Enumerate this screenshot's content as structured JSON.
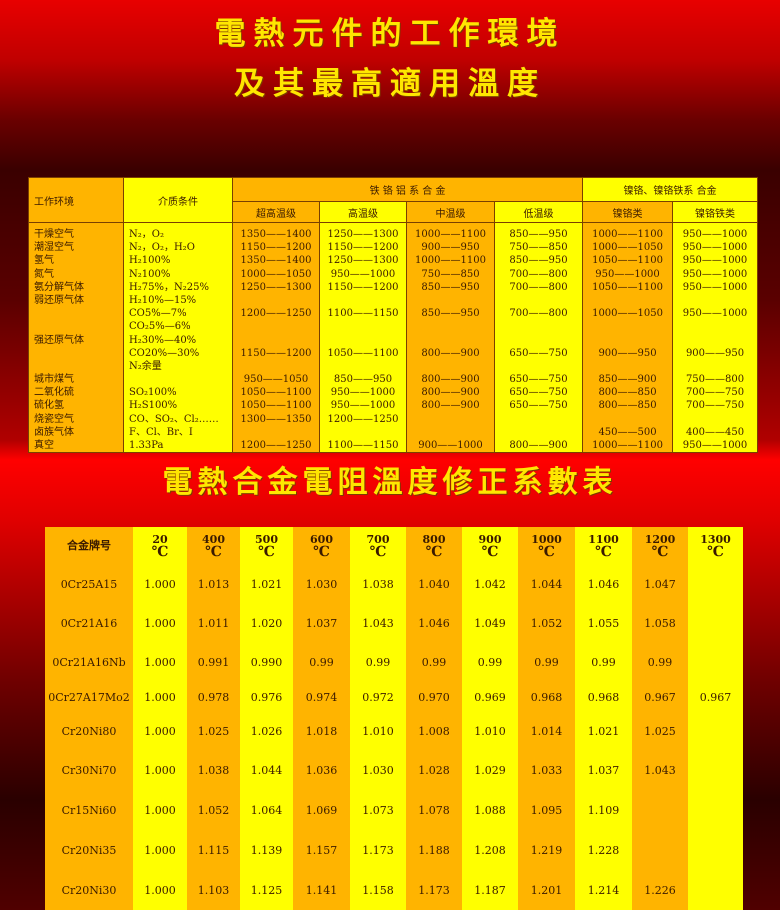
{
  "titles": {
    "line1": "電熱元件的工作環境",
    "line2": "及其最高適用溫度",
    "line3": "電熱合金電阻溫度修正系數表"
  },
  "colors": {
    "background": "#cc0000",
    "title": "#ffe600",
    "cell_orange": "#ffb400",
    "cell_yellow": "#ffff00"
  },
  "env_table": {
    "headers": {
      "environment": "工作环境",
      "medium": "介质条件",
      "fecral_group": "铁 铬 铝 系 合 金",
      "nicr_group": "镍铬、镍铬铁系 合金",
      "sub": [
        "超高温级",
        "高温级",
        "中温级",
        "低温级",
        "镍铬类",
        "镍铬铁类"
      ]
    },
    "environments": [
      "干燥空气",
      "潮湿空气",
      "氢气",
      "氮气",
      "氨分解气体",
      "弱还原气体",
      "",
      "",
      "强还原气体",
      "",
      "",
      "城市煤气",
      "二氧化硫",
      "硫化氢",
      "烧瓷空气",
      "卤族气体",
      "真空"
    ],
    "media": [
      "N₂，O₂",
      "N₂，O₂，H₂O",
      "H₂100%",
      "N₂100%",
      "H₂75%，N₂25%",
      "H₂10%—15%",
      "CO5%—7%",
      "CO₂5%—6%",
      "H₂30%—40%",
      "CO20%—30%",
      "N₂余量",
      "",
      "SO₂100%",
      "H₂S100%",
      "CO、SO₂、Cl₂……",
      "F、Cl、Br、I",
      "1.33Pa"
    ],
    "columns": [
      [
        "1350——1400",
        "1150——1200",
        "1350——1400",
        "1000——1050",
        "1250——1300",
        "",
        "1200——1250",
        "",
        "",
        "1150——1200",
        "",
        "950——1050",
        "1050——1100",
        "1050——1100",
        "1300——1350",
        "",
        "1200——1250"
      ],
      [
        "1250——1300",
        "1150——1200",
        "1250——1300",
        "950——1000",
        "1150——1200",
        "",
        "1100——1150",
        "",
        "",
        "1050——1100",
        "",
        "850——950",
        "950——1000",
        "950——1000",
        "1200——1250",
        "",
        "1100——1150"
      ],
      [
        "1000——1100",
        "900——950",
        "1000——1100",
        "750——850",
        "850——950",
        "",
        "850——950",
        "",
        "",
        "800——900",
        "",
        "800——900",
        "800——900",
        "800——900",
        "",
        "",
        "900——1000"
      ],
      [
        "850——950",
        "750——850",
        "850——950",
        "700——800",
        "700——800",
        "",
        "700——800",
        "",
        "",
        "650——750",
        "",
        "650——750",
        "650——750",
        "650——750",
        "",
        "",
        "800——900"
      ],
      [
        "1000——1100",
        "1000——1050",
        "1050——1100",
        "950——1000",
        "1050——1100",
        "",
        "1000——1050",
        "",
        "",
        "900——950",
        "",
        "850——900",
        "800——850",
        "800——850",
        "",
        "450——500",
        "1000——1100"
      ],
      [
        "950——1000",
        "950——1000",
        "950——1000",
        "950——1000",
        "950——1000",
        "",
        "950——1000",
        "",
        "",
        "900——950",
        "",
        "750——800",
        "700——750",
        "700——750",
        "",
        "400——450",
        "950——1000"
      ]
    ]
  },
  "coef_table": {
    "header_label": "合金牌号",
    "unit": "℃",
    "temperatures": [
      "20",
      "400",
      "500",
      "600",
      "700",
      "800",
      "900",
      "1000",
      "1100",
      "1200",
      "1300"
    ],
    "rows": [
      {
        "alloy": "0Cr25A15",
        "values": [
          "1.000",
          "1.013",
          "1.021",
          "1.030",
          "1.038",
          "1.040",
          "1.042",
          "1.044",
          "1.046",
          "1.047",
          ""
        ]
      },
      {
        "alloy": "0Cr21A16",
        "values": [
          "1.000",
          "1.011",
          "1.020",
          "1.037",
          "1.043",
          "1.046",
          "1.049",
          "1.052",
          "1.055",
          "1.058",
          ""
        ]
      },
      {
        "alloy": "0Cr21A16Nb",
        "values": [
          "1.000",
          "0.991",
          "0.990",
          "0.99",
          "0.99",
          "0.99",
          "0.99",
          "0.99",
          "0.99",
          "0.99",
          ""
        ]
      },
      {
        "alloy": "0Cr27A17Mo2",
        "values": [
          "1.000",
          "0.978",
          "0.976",
          "0.974",
          "0.972",
          "0.970",
          "0.969",
          "0.968",
          "0.968",
          "0.967",
          "0.967"
        ]
      },
      {
        "alloy": "Cr20Ni80",
        "values": [
          "1.000",
          "1.025",
          "1.026",
          "1.018",
          "1.010",
          "1.008",
          "1.010",
          "1.014",
          "1.021",
          "1.025",
          ""
        ]
      },
      {
        "alloy": "Cr30Ni70",
        "values": [
          "1.000",
          "1.038",
          "1.044",
          "1.036",
          "1.030",
          "1.028",
          "1.029",
          "1.033",
          "1.037",
          "1.043",
          ""
        ]
      },
      {
        "alloy": "Cr15Ni60",
        "values": [
          "1.000",
          "1.052",
          "1.064",
          "1.069",
          "1.073",
          "1.078",
          "1.088",
          "1.095",
          "1.109",
          "",
          ""
        ]
      },
      {
        "alloy": "Cr20Ni35",
        "values": [
          "1.000",
          "1.115",
          "1.139",
          "1.157",
          "1.173",
          "1.188",
          "1.208",
          "1.219",
          "1.228",
          "",
          ""
        ]
      },
      {
        "alloy": "Cr20Ni30",
        "values": [
          "1.000",
          "1.103",
          "1.125",
          "1.141",
          "1.158",
          "1.173",
          "1.187",
          "1.201",
          "1.214",
          "1.226",
          ""
        ]
      }
    ]
  }
}
